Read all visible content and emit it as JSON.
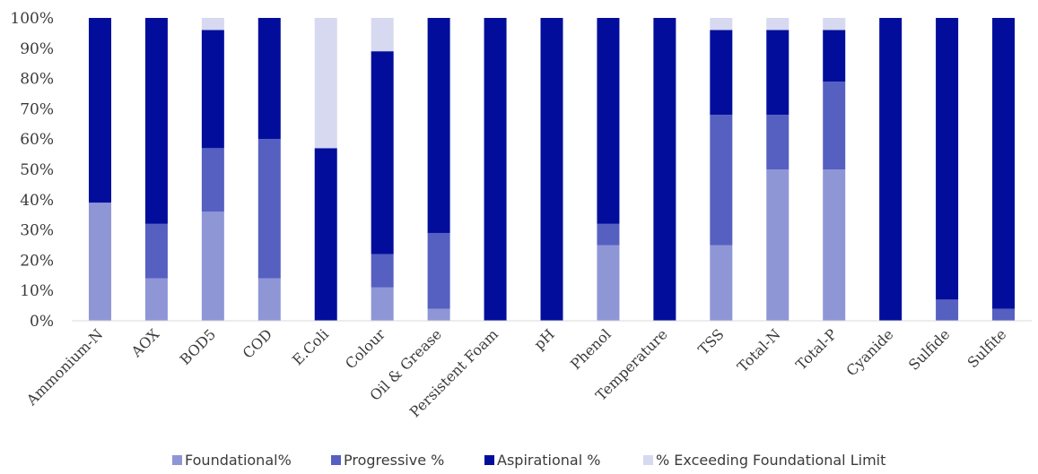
{
  "chart_data": {
    "type": "bar",
    "stacked": true,
    "categories": [
      "Ammonium-N",
      "AOX",
      "BOD5",
      "COD",
      "E.Coli",
      "Colour",
      "Oil & Grease",
      "Persistent Foam",
      "pH",
      "Phenol",
      "Temperature",
      "TSS",
      "Total-N",
      "Total-P",
      "Cyanide",
      "Sulfide",
      "Sulfite"
    ],
    "series": [
      {
        "name": "Foundational%",
        "color": "#8e96d6",
        "values": [
          39,
          14,
          36,
          14,
          0,
          11,
          4,
          0,
          0,
          25,
          0,
          25,
          50,
          50,
          0,
          0,
          0
        ]
      },
      {
        "name": "Progressive %",
        "color": "#5660c0",
        "values": [
          0,
          18,
          21,
          46,
          0,
          11,
          25,
          0,
          0,
          7,
          0,
          43,
          18,
          29,
          0,
          7,
          4
        ]
      },
      {
        "name": "Aspirational %",
        "color": "#020e9b",
        "values": [
          61,
          68,
          39,
          40,
          57,
          67,
          71,
          100,
          100,
          68,
          100,
          28,
          28,
          17,
          100,
          93,
          96
        ]
      },
      {
        "name": "% Exceeding Foundational Limit",
        "color": "#d6d9f0",
        "values": [
          0,
          0,
          4,
          0,
          43,
          11,
          0,
          0,
          0,
          0,
          0,
          4,
          4,
          4,
          0,
          0,
          0
        ]
      }
    ],
    "y_ticks": [
      "0%",
      "10%",
      "20%",
      "30%",
      "40%",
      "50%",
      "60%",
      "70%",
      "80%",
      "90%",
      "100%"
    ],
    "ylim": [
      0,
      100
    ],
    "grid": false,
    "legend_position": "bottom"
  }
}
